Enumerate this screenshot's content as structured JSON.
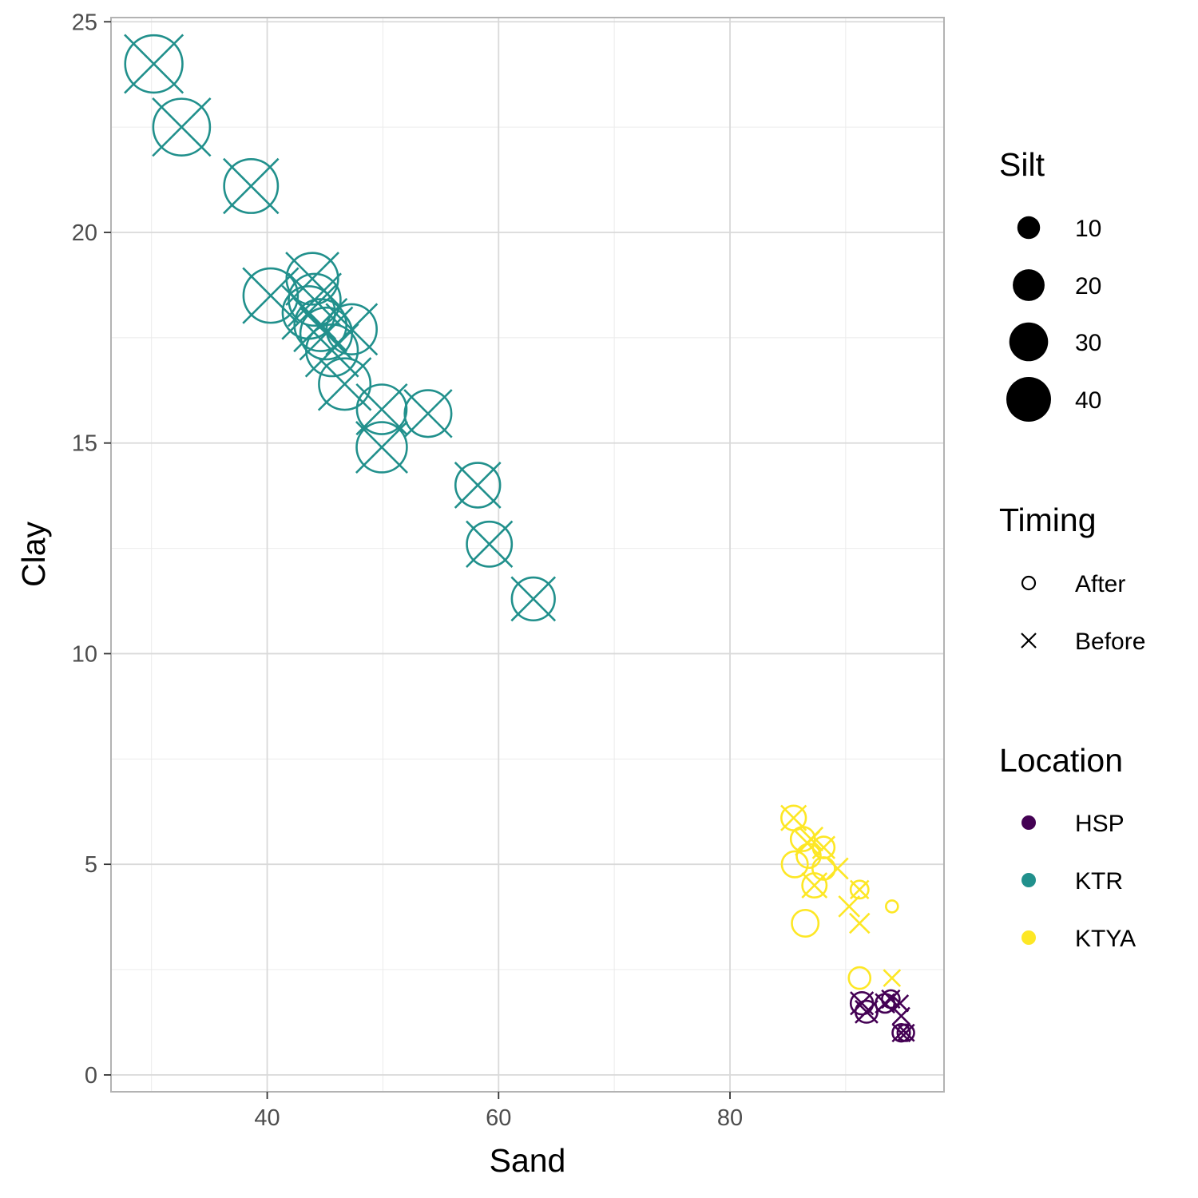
{
  "chart_data": {
    "type": "scatter",
    "title": "",
    "xlabel": "Sand",
    "ylabel": "Clay",
    "xlim": [
      26.5,
      98.5
    ],
    "ylim": [
      -0.4,
      25.1
    ],
    "x_ticks": [
      40,
      60,
      80
    ],
    "y_ticks": [
      0,
      5,
      10,
      15,
      20,
      25
    ],
    "x_tick_labels": [
      "40",
      "60",
      "80"
    ],
    "y_tick_labels": [
      "0",
      "5",
      "10",
      "15",
      "20",
      "25"
    ],
    "grid": true,
    "legend_position": "right",
    "legends": {
      "size": {
        "title": "Silt",
        "breaks": [
          10,
          20,
          30,
          40
        ],
        "labels": [
          "10",
          "20",
          "30",
          "40"
        ]
      },
      "shape": {
        "title": "Timing",
        "labels": [
          "After",
          "Before"
        ],
        "glyphs": [
          "circle",
          "cross"
        ]
      },
      "color": {
        "title": "Location",
        "labels": [
          "HSP",
          "KTR",
          "KTYA"
        ],
        "colors": [
          "#440154",
          "#21908C",
          "#FDE725"
        ]
      }
    },
    "series": [
      {
        "name": "KTR",
        "color": "#21908C",
        "points": [
          {
            "x": 30.2,
            "y": 24.0,
            "silt": 45.8,
            "timing": "After"
          },
          {
            "x": 30.2,
            "y": 24.0,
            "silt": 45.8,
            "timing": "Before"
          },
          {
            "x": 32.6,
            "y": 22.5,
            "silt": 44.9,
            "timing": "After"
          },
          {
            "x": 32.6,
            "y": 22.5,
            "silt": 44.9,
            "timing": "Before"
          },
          {
            "x": 38.6,
            "y": 21.1,
            "silt": 40.3,
            "timing": "After"
          },
          {
            "x": 38.6,
            "y": 21.1,
            "silt": 40.3,
            "timing": "Before"
          },
          {
            "x": 40.3,
            "y": 18.5,
            "silt": 41.2,
            "timing": "After"
          },
          {
            "x": 40.3,
            "y": 18.5,
            "silt": 41.2,
            "timing": "Before"
          },
          {
            "x": 43.9,
            "y": 18.9,
            "silt": 37.2,
            "timing": "After"
          },
          {
            "x": 43.9,
            "y": 18.9,
            "silt": 37.2,
            "timing": "Before"
          },
          {
            "x": 44.1,
            "y": 18.4,
            "silt": 37.5,
            "timing": "After"
          },
          {
            "x": 44.1,
            "y": 18.4,
            "silt": 37.5,
            "timing": "Before"
          },
          {
            "x": 43.6,
            "y": 18.1,
            "silt": 38.3,
            "timing": "After"
          },
          {
            "x": 43.6,
            "y": 18.1,
            "silt": 38.3,
            "timing": "Before"
          },
          {
            "x": 44.6,
            "y": 17.8,
            "silt": 37.6,
            "timing": "After"
          },
          {
            "x": 44.6,
            "y": 17.8,
            "silt": 37.6,
            "timing": "Before"
          },
          {
            "x": 45.1,
            "y": 17.6,
            "silt": 37.3,
            "timing": "After"
          },
          {
            "x": 45.1,
            "y": 17.6,
            "silt": 37.3,
            "timing": "Before"
          },
          {
            "x": 47.3,
            "y": 17.7,
            "silt": 35.0,
            "timing": "After"
          },
          {
            "x": 47.3,
            "y": 17.7,
            "silt": 35.0,
            "timing": "Before"
          },
          {
            "x": 45.6,
            "y": 17.2,
            "silt": 37.2,
            "timing": "After"
          },
          {
            "x": 45.6,
            "y": 17.2,
            "silt": 37.2,
            "timing": "Before"
          },
          {
            "x": 46.7,
            "y": 16.4,
            "silt": 36.9,
            "timing": "After"
          },
          {
            "x": 46.7,
            "y": 16.4,
            "silt": 36.9,
            "timing": "Before"
          },
          {
            "x": 49.9,
            "y": 15.8,
            "silt": 34.3,
            "timing": "After"
          },
          {
            "x": 49.9,
            "y": 15.8,
            "silt": 34.3,
            "timing": "Before"
          },
          {
            "x": 53.9,
            "y": 15.7,
            "silt": 30.4,
            "timing": "After"
          },
          {
            "x": 53.9,
            "y": 15.7,
            "silt": 30.4,
            "timing": "Before"
          },
          {
            "x": 49.9,
            "y": 14.9,
            "silt": 35.2,
            "timing": "After"
          },
          {
            "x": 49.9,
            "y": 14.9,
            "silt": 35.2,
            "timing": "Before"
          },
          {
            "x": 58.2,
            "y": 14.0,
            "silt": 27.8,
            "timing": "After"
          },
          {
            "x": 58.2,
            "y": 14.0,
            "silt": 27.8,
            "timing": "Before"
          },
          {
            "x": 59.2,
            "y": 12.6,
            "silt": 28.2,
            "timing": "After"
          },
          {
            "x": 59.2,
            "y": 12.6,
            "silt": 28.2,
            "timing": "Before"
          },
          {
            "x": 63.0,
            "y": 11.3,
            "silt": 25.7,
            "timing": "After"
          },
          {
            "x": 63.0,
            "y": 11.3,
            "silt": 25.7,
            "timing": "Before"
          }
        ]
      },
      {
        "name": "KTYA",
        "color": "#FDE725",
        "points": [
          {
            "x": 85.5,
            "y": 6.1,
            "silt": 8.4,
            "timing": "After"
          },
          {
            "x": 85.5,
            "y": 6.1,
            "silt": 8.4,
            "timing": "Before"
          },
          {
            "x": 86.3,
            "y": 5.6,
            "silt": 8.1,
            "timing": "After"
          },
          {
            "x": 87.0,
            "y": 5.6,
            "silt": 7.4,
            "timing": "Before"
          },
          {
            "x": 86.7,
            "y": 5.5,
            "silt": 7.8,
            "timing": "Before"
          },
          {
            "x": 88.1,
            "y": 5.4,
            "silt": 6.5,
            "timing": "After"
          },
          {
            "x": 88.1,
            "y": 5.4,
            "silt": 6.5,
            "timing": "Before"
          },
          {
            "x": 86.8,
            "y": 5.2,
            "silt": 8.0,
            "timing": "After"
          },
          {
            "x": 85.6,
            "y": 5.0,
            "silt": 9.4,
            "timing": "After"
          },
          {
            "x": 88.1,
            "y": 4.9,
            "silt": 7.0,
            "timing": "After"
          },
          {
            "x": 89.3,
            "y": 4.9,
            "silt": 5.8,
            "timing": "Before"
          },
          {
            "x": 87.3,
            "y": 4.5,
            "silt": 8.2,
            "timing": "After"
          },
          {
            "x": 87.3,
            "y": 4.5,
            "silt": 8.2,
            "timing": "Before"
          },
          {
            "x": 91.2,
            "y": 4.4,
            "silt": 4.4,
            "timing": "After"
          },
          {
            "x": 91.2,
            "y": 4.4,
            "silt": 4.4,
            "timing": "Before"
          },
          {
            "x": 90.3,
            "y": 4.0,
            "silt": 5.7,
            "timing": "Before"
          },
          {
            "x": 94.0,
            "y": 4.0,
            "silt": 2.0,
            "timing": "After"
          },
          {
            "x": 86.5,
            "y": 3.6,
            "silt": 9.9,
            "timing": "After"
          },
          {
            "x": 91.2,
            "y": 3.6,
            "silt": 5.2,
            "timing": "Before"
          },
          {
            "x": 91.2,
            "y": 2.3,
            "silt": 6.5,
            "timing": "After"
          },
          {
            "x": 94.0,
            "y": 2.3,
            "silt": 3.7,
            "timing": "Before"
          }
        ]
      },
      {
        "name": "HSP",
        "color": "#440154",
        "points": [
          {
            "x": 91.4,
            "y": 1.7,
            "silt": 6.9,
            "timing": "After"
          },
          {
            "x": 91.4,
            "y": 1.7,
            "silt": 6.9,
            "timing": "Before"
          },
          {
            "x": 91.8,
            "y": 1.5,
            "silt": 6.7,
            "timing": "After"
          },
          {
            "x": 91.8,
            "y": 1.5,
            "silt": 6.7,
            "timing": "Before"
          },
          {
            "x": 93.4,
            "y": 1.7,
            "silt": 4.9,
            "timing": "After"
          },
          {
            "x": 93.4,
            "y": 1.7,
            "silt": 4.9,
            "timing": "Before"
          },
          {
            "x": 93.9,
            "y": 1.8,
            "silt": 4.3,
            "timing": "After"
          },
          {
            "x": 93.9,
            "y": 1.8,
            "silt": 4.3,
            "timing": "Before"
          },
          {
            "x": 94.7,
            "y": 1.7,
            "silt": 3.6,
            "timing": "Before"
          },
          {
            "x": 94.8,
            "y": 1.4,
            "silt": 3.8,
            "timing": "Before"
          },
          {
            "x": 94.8,
            "y": 1.0,
            "silt": 4.2,
            "timing": "After"
          },
          {
            "x": 94.8,
            "y": 1.0,
            "silt": 4.2,
            "timing": "Before"
          },
          {
            "x": 95.2,
            "y": 1.0,
            "silt": 3.8,
            "timing": "After"
          },
          {
            "x": 95.2,
            "y": 1.0,
            "silt": 3.8,
            "timing": "Before"
          }
        ]
      }
    ]
  }
}
